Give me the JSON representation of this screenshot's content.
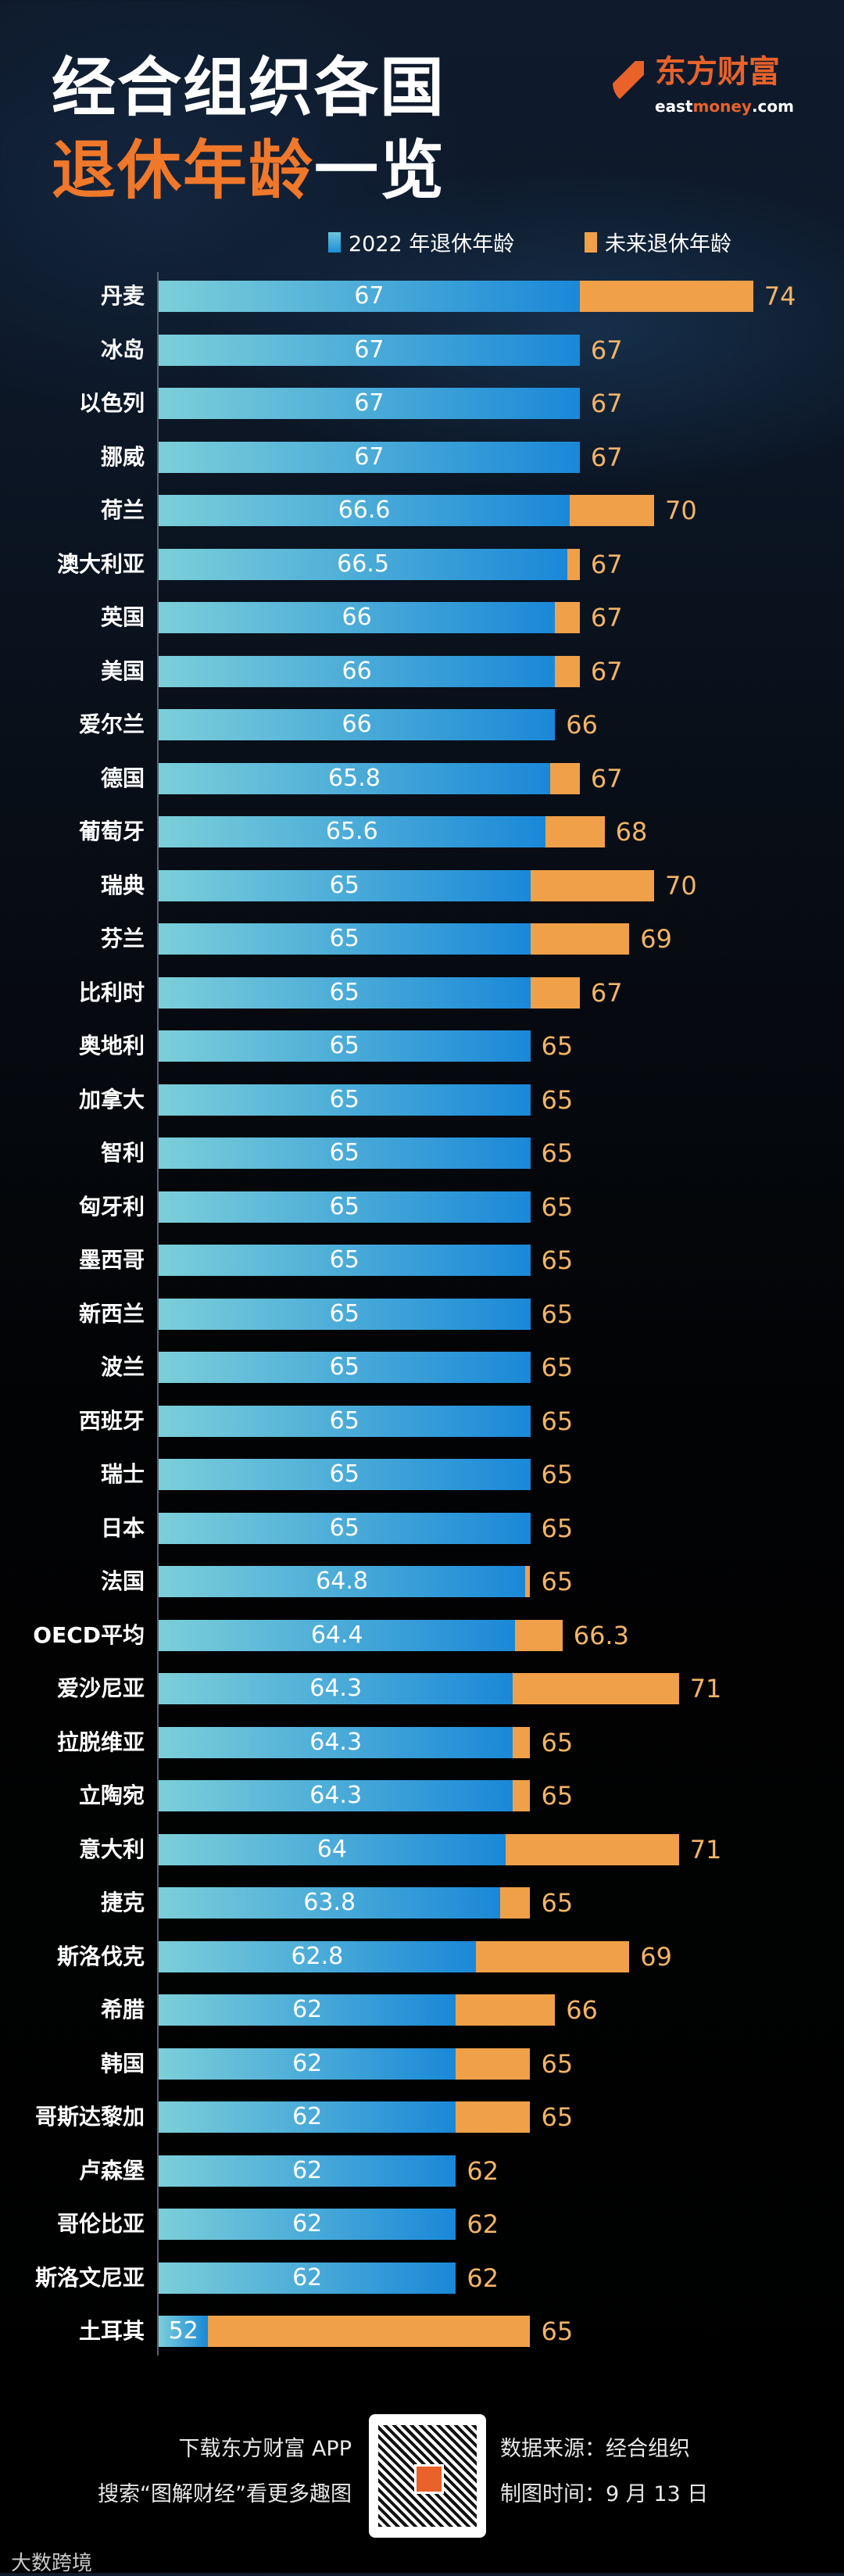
{
  "title": {
    "line1": "经合组织各国",
    "line2_orange": "退休年龄",
    "line2_white": "一览"
  },
  "logo": {
    "cn": "东方财富",
    "en_pre": "east",
    "en_mid": "money",
    "en_post": ".com"
  },
  "colors": {
    "current": "#1a88d8",
    "current_light": "#7ccfd9",
    "future": "#f0a048",
    "future_label": "#f3b468",
    "title_accent": "#f0782a"
  },
  "chart_data": {
    "type": "bar",
    "orientation": "horizontal",
    "stacked_overlay": true,
    "xlim": [
      50,
      75
    ],
    "legend": {
      "position": "top-right"
    },
    "series": [
      {
        "name": "2022 年退休年龄"
      },
      {
        "name": "未来退休年龄"
      }
    ],
    "rows": [
      {
        "country": "丹麦",
        "current": "67",
        "future": "74"
      },
      {
        "country": "冰岛",
        "current": "67",
        "future": "67"
      },
      {
        "country": "以色列",
        "current": "67",
        "future": "67"
      },
      {
        "country": "挪威",
        "current": "67",
        "future": "67"
      },
      {
        "country": "荷兰",
        "current": "66.6",
        "future": "70"
      },
      {
        "country": "澳大利亚",
        "current": "66.5",
        "future": "67"
      },
      {
        "country": "英国",
        "current": "66",
        "future": "67"
      },
      {
        "country": "美国",
        "current": "66",
        "future": "67"
      },
      {
        "country": "爱尔兰",
        "current": "66",
        "future": "66"
      },
      {
        "country": "德国",
        "current": "65.8",
        "future": "67"
      },
      {
        "country": "葡萄牙",
        "current": "65.6",
        "future": "68"
      },
      {
        "country": "瑞典",
        "current": "65",
        "future": "70"
      },
      {
        "country": "芬兰",
        "current": "65",
        "future": "69"
      },
      {
        "country": "比利时",
        "current": "65",
        "future": "67"
      },
      {
        "country": "奥地利",
        "current": "65",
        "future": "65"
      },
      {
        "country": "加拿大",
        "current": "65",
        "future": "65"
      },
      {
        "country": "智利",
        "current": "65",
        "future": "65"
      },
      {
        "country": "匈牙利",
        "current": "65",
        "future": "65"
      },
      {
        "country": "墨西哥",
        "current": "65",
        "future": "65"
      },
      {
        "country": "新西兰",
        "current": "65",
        "future": "65"
      },
      {
        "country": "波兰",
        "current": "65",
        "future": "65"
      },
      {
        "country": "西班牙",
        "current": "65",
        "future": "65"
      },
      {
        "country": "瑞士",
        "current": "65",
        "future": "65"
      },
      {
        "country": "日本",
        "current": "65",
        "future": "65"
      },
      {
        "country": "法国",
        "current": "64.8",
        "future": "65"
      },
      {
        "country": "OECD平均",
        "current": "64.4",
        "future": "66.3"
      },
      {
        "country": "爱沙尼亚",
        "current": "64.3",
        "future": "71"
      },
      {
        "country": "拉脱维亚",
        "current": "64.3",
        "future": "65"
      },
      {
        "country": "立陶宛",
        "current": "64.3",
        "future": "65"
      },
      {
        "country": "意大利",
        "current": "64",
        "future": "71"
      },
      {
        "country": "捷克",
        "current": "63.8",
        "future": "65"
      },
      {
        "country": "斯洛伐克",
        "current": "62.8",
        "future": "69"
      },
      {
        "country": "希腊",
        "current": "62",
        "future": "66"
      },
      {
        "country": "韩国",
        "current": "62",
        "future": "65"
      },
      {
        "country": "哥斯达黎加",
        "current": "62",
        "future": "65"
      },
      {
        "country": "卢森堡",
        "current": "62",
        "future": "62"
      },
      {
        "country": "哥伦比亚",
        "current": "62",
        "future": "62"
      },
      {
        "country": "斯洛文尼亚",
        "current": "62",
        "future": "62"
      },
      {
        "country": "土耳其",
        "current": "52",
        "future": "65"
      }
    ]
  },
  "footer": {
    "download": "下载东方财富 APP",
    "search": "搜索“图解财经”看更多趣图",
    "source": "数据来源：经合组织",
    "date": "制图时间：9 月 13 日"
  },
  "watermark": "大数跨境"
}
